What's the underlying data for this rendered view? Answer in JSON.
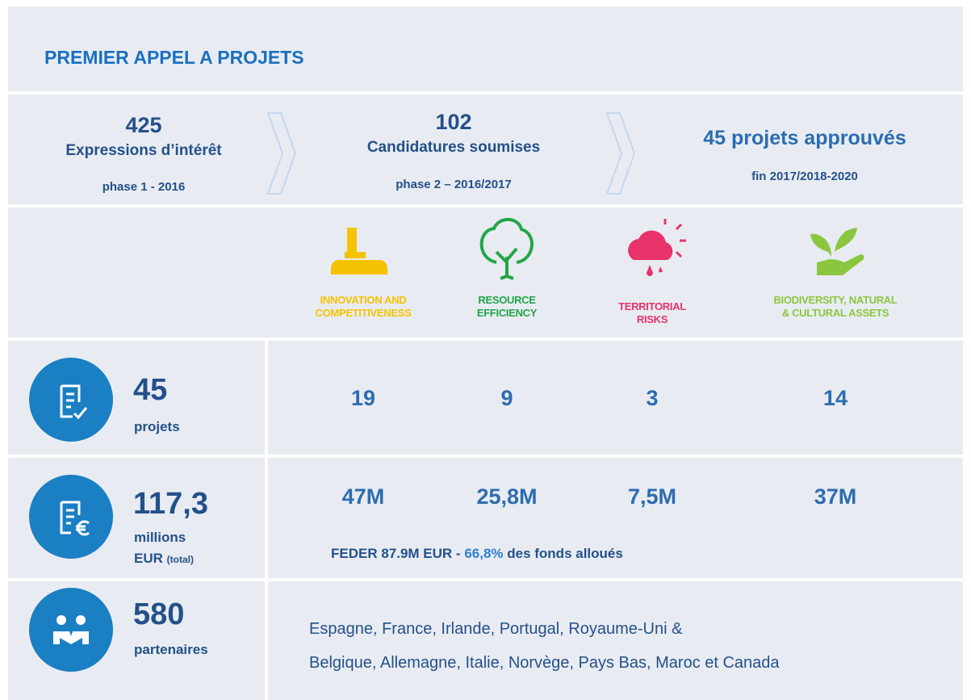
{
  "title": "PREMIER APPEL A PROJETS",
  "phases": [
    {
      "number": "425",
      "label": "Expressions d’intérêt",
      "sub": "phase 1 - 2016"
    },
    {
      "number": "102",
      "label": "Candidatures soumises",
      "sub": "phase 2 – 2016/2017"
    },
    {
      "label": "45 projets approuvés",
      "sub": "fin 2017/2018-2020"
    }
  ],
  "themes": [
    {
      "lines": [
        "INNOVATION AND",
        "COMPETITIVENESS"
      ],
      "color": "#f5c200"
    },
    {
      "lines": [
        "RESOURCE",
        "EFFICIENCY"
      ],
      "color": "#23a548"
    },
    {
      "lines": [
        "TERRITORIAL",
        "RISKS"
      ],
      "color": "#e8336b"
    },
    {
      "lines": [
        "BIODIVERSITY, NATURAL",
        "& CULTURAL ASSETS"
      ],
      "color": "#8cc63f"
    }
  ],
  "projects": {
    "value": "45",
    "unit": "projets",
    "cells": [
      "19",
      "9",
      "3",
      "14"
    ]
  },
  "budget": {
    "value": "117,3",
    "unit": [
      "millions",
      "EUR"
    ],
    "unit_note": "(total)",
    "cells": [
      "47M",
      "25,8M",
      "7,5M",
      "37M"
    ],
    "note": {
      "before": "FEDER 87.9M EUR - ",
      "highlight": "66,8%",
      "after": " des fonds alloués"
    }
  },
  "partners": {
    "value": "580",
    "unit": "partenaires",
    "lines": [
      "Espagne, France, Irlande, Portugal, Royaume-Uni &",
      "Belgique, Allemagne, Italie, Norvège, Pays Bas, Maroc et Canada"
    ]
  }
}
